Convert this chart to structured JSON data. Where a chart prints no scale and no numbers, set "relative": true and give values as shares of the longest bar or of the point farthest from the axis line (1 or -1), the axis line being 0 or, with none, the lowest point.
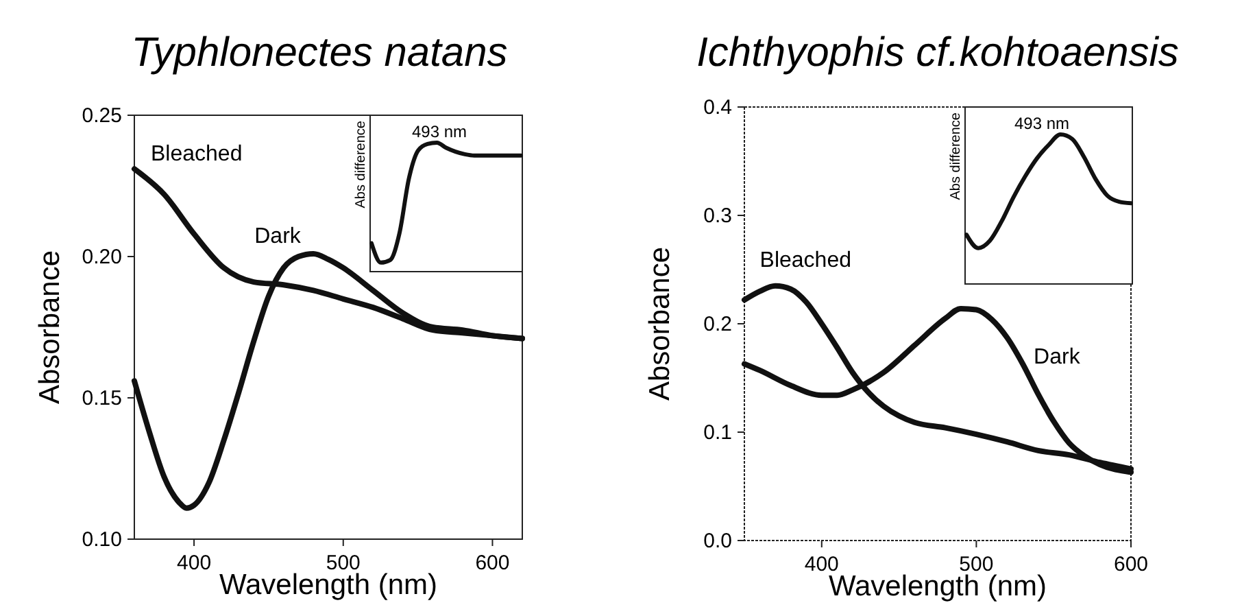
{
  "chart_data": [
    {
      "type": "line",
      "title": "Typhlonectes natans",
      "xlabel": "Wavelength (nm)",
      "ylabel": "Absorbance",
      "xlim": [
        360,
        620
      ],
      "xticks": [
        400,
        500,
        600
      ],
      "ylim": [
        0.1,
        0.25
      ],
      "yticks": [
        {
          "value": 0.1,
          "label": "0.10"
        },
        {
          "value": 0.15,
          "label": "0.15"
        },
        {
          "value": 0.2,
          "label": "0.20"
        },
        {
          "value": 0.25,
          "label": "0.25"
        }
      ],
      "series": [
        {
          "name": "Bleached",
          "color": "#111111",
          "x": [
            360,
            380,
            400,
            420,
            440,
            460,
            480,
            500,
            520,
            540,
            560,
            580,
            600,
            620
          ],
          "values": [
            0.231,
            0.222,
            0.208,
            0.196,
            0.191,
            0.19,
            0.188,
            0.185,
            0.182,
            0.178,
            0.174,
            0.173,
            0.172,
            0.171
          ]
        },
        {
          "name": "Dark",
          "color": "#111111",
          "x": [
            360,
            370,
            380,
            390,
            395,
            400,
            410,
            420,
            430,
            440,
            450,
            460,
            470,
            480,
            490,
            500,
            520,
            540,
            560,
            580,
            600,
            620
          ],
          "values": [
            0.156,
            0.138,
            0.122,
            0.113,
            0.111,
            0.112,
            0.12,
            0.135,
            0.152,
            0.17,
            0.186,
            0.196,
            0.2,
            0.201,
            0.199,
            0.196,
            0.188,
            0.18,
            0.175,
            0.174,
            0.172,
            0.171
          ]
        }
      ]
    },
    {
      "type": "line",
      "relative": true,
      "ylabel": "Abs difference",
      "annotations": [
        "493 nm"
      ],
      "categories": [
        null,
        null,
        null,
        null,
        null,
        null,
        null,
        null,
        null,
        null,
        null,
        null,
        null,
        null,
        null,
        null,
        null
      ],
      "series": [
        {
          "color": "#111111",
          "values": [
            0.22,
            0.07,
            0.09,
            0.3,
            0.72,
            0.94,
            0.99,
            1.0,
            0.96,
            0.93,
            0.91,
            0.9,
            0.9,
            0.9,
            0.9,
            0.9,
            0.9
          ]
        }
      ]
    },
    {
      "type": "line",
      "title": "Ichthyophis cf.kohtoaensis",
      "xlabel": "Wavelength (nm)",
      "ylabel": "Absorbance",
      "xlim": [
        350,
        600
      ],
      "xticks": [
        400,
        500,
        600
      ],
      "ylim": [
        0,
        0.4
      ],
      "yticks": [
        {
          "value": 0,
          "label": "0.0"
        },
        {
          "value": 0.1,
          "label": "0.1"
        },
        {
          "value": 0.2,
          "label": "0.2"
        },
        {
          "value": 0.3,
          "label": "0.3"
        },
        {
          "value": 0.4,
          "label": "0.4"
        }
      ],
      "series": [
        {
          "name": "Bleached",
          "color": "#111111",
          "x": [
            350,
            360,
            370,
            380,
            390,
            400,
            410,
            420,
            430,
            440,
            450,
            460,
            480,
            500,
            520,
            540,
            560,
            580,
            600
          ],
          "values": [
            0.222,
            0.23,
            0.235,
            0.232,
            0.22,
            0.2,
            0.178,
            0.155,
            0.137,
            0.124,
            0.115,
            0.109,
            0.104,
            0.098,
            0.091,
            0.083,
            0.079,
            0.072,
            0.066
          ]
        },
        {
          "name": "Dark",
          "color": "#111111",
          "x": [
            350,
            360,
            380,
            400,
            410,
            420,
            440,
            460,
            480,
            490,
            500,
            510,
            520,
            530,
            540,
            550,
            560,
            570,
            580,
            600
          ],
          "values": [
            0.163,
            0.157,
            0.143,
            0.134,
            0.134,
            0.139,
            0.155,
            0.18,
            0.205,
            0.214,
            0.213,
            0.204,
            0.187,
            0.163,
            0.135,
            0.11,
            0.09,
            0.078,
            0.07,
            0.063
          ]
        }
      ]
    },
    {
      "type": "line",
      "relative": true,
      "ylabel": "Abs difference",
      "annotations": [
        "493 nm"
      ],
      "categories": [
        null,
        null,
        null,
        null,
        null,
        null,
        null,
        null,
        null,
        null,
        null,
        null,
        null,
        null,
        null
      ],
      "series": [
        {
          "color": "#111111",
          "values": [
            0.33,
            0.24,
            0.29,
            0.42,
            0.58,
            0.72,
            0.84,
            0.93,
            1.0,
            0.97,
            0.85,
            0.7,
            0.59,
            0.55,
            0.54
          ]
        }
      ]
    }
  ]
}
